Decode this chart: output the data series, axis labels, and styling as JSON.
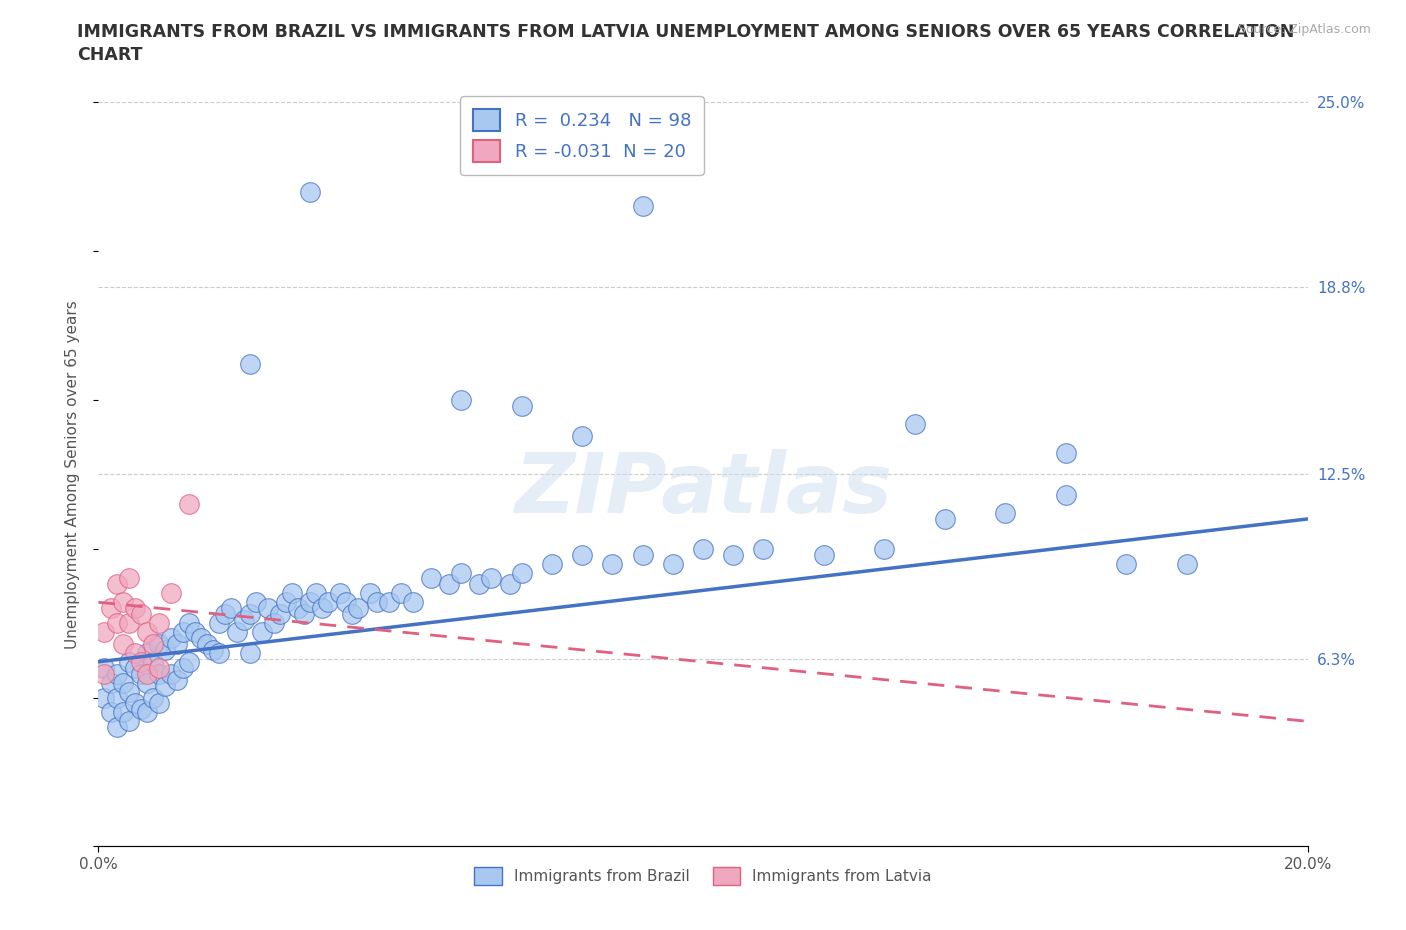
{
  "title": "IMMIGRANTS FROM BRAZIL VS IMMIGRANTS FROM LATVIA UNEMPLOYMENT AMONG SENIORS OVER 65 YEARS CORRELATION\nCHART",
  "source_text": "Source: ZipAtlas.com",
  "ylabel": "Unemployment Among Seniors over 65 years",
  "xlim": [
    0.0,
    0.2
  ],
  "ylim": [
    0.0,
    0.25
  ],
  "ytick_positions": [
    0.0,
    0.063,
    0.125,
    0.188,
    0.25
  ],
  "yticklabels_right": [
    "",
    "6.3%",
    "12.5%",
    "18.8%",
    "25.0%"
  ],
  "brazil_R": 0.234,
  "brazil_N": 98,
  "latvia_R": -0.031,
  "latvia_N": 20,
  "brazil_color": "#a8c8f0",
  "latvia_color": "#f0a8c0",
  "brazil_line_color": "#4472c4",
  "latvia_line_color": "#e06080",
  "watermark": "ZIPatlas",
  "legend_brazil_label": "Immigrants from Brazil",
  "legend_latvia_label": "Immigrants from Latvia",
  "brazil_line_y0": 0.062,
  "brazil_line_y1": 0.11,
  "latvia_line_y0": 0.082,
  "latvia_line_y1": 0.042,
  "brazil_x": [
    0.001,
    0.001,
    0.002,
    0.002,
    0.003,
    0.003,
    0.003,
    0.004,
    0.004,
    0.005,
    0.005,
    0.005,
    0.006,
    0.006,
    0.007,
    0.007,
    0.008,
    0.008,
    0.008,
    0.009,
    0.009,
    0.01,
    0.01,
    0.01,
    0.011,
    0.011,
    0.012,
    0.012,
    0.013,
    0.013,
    0.014,
    0.014,
    0.015,
    0.015,
    0.016,
    0.017,
    0.018,
    0.019,
    0.02,
    0.02,
    0.021,
    0.022,
    0.023,
    0.024,
    0.025,
    0.025,
    0.026,
    0.027,
    0.028,
    0.029,
    0.03,
    0.031,
    0.032,
    0.033,
    0.034,
    0.035,
    0.036,
    0.037,
    0.038,
    0.04,
    0.041,
    0.042,
    0.043,
    0.045,
    0.046,
    0.048,
    0.05,
    0.052,
    0.055,
    0.058,
    0.06,
    0.063,
    0.065,
    0.068,
    0.07,
    0.075,
    0.08,
    0.085,
    0.09,
    0.095,
    0.1,
    0.105,
    0.11,
    0.12,
    0.13,
    0.14,
    0.15,
    0.16,
    0.17,
    0.18,
    0.035,
    0.09,
    0.135,
    0.16,
    0.025,
    0.06,
    0.07,
    0.08
  ],
  "brazil_y": [
    0.06,
    0.05,
    0.055,
    0.045,
    0.058,
    0.05,
    0.04,
    0.055,
    0.045,
    0.062,
    0.052,
    0.042,
    0.06,
    0.048,
    0.058,
    0.046,
    0.065,
    0.055,
    0.045,
    0.062,
    0.05,
    0.068,
    0.058,
    0.048,
    0.066,
    0.054,
    0.07,
    0.058,
    0.068,
    0.056,
    0.072,
    0.06,
    0.075,
    0.062,
    0.072,
    0.07,
    0.068,
    0.066,
    0.075,
    0.065,
    0.078,
    0.08,
    0.072,
    0.076,
    0.078,
    0.065,
    0.082,
    0.072,
    0.08,
    0.075,
    0.078,
    0.082,
    0.085,
    0.08,
    0.078,
    0.082,
    0.085,
    0.08,
    0.082,
    0.085,
    0.082,
    0.078,
    0.08,
    0.085,
    0.082,
    0.082,
    0.085,
    0.082,
    0.09,
    0.088,
    0.092,
    0.088,
    0.09,
    0.088,
    0.092,
    0.095,
    0.098,
    0.095,
    0.098,
    0.095,
    0.1,
    0.098,
    0.1,
    0.098,
    0.1,
    0.11,
    0.112,
    0.118,
    0.095,
    0.095,
    0.22,
    0.215,
    0.142,
    0.132,
    0.162,
    0.15,
    0.148,
    0.138
  ],
  "latvia_x": [
    0.001,
    0.001,
    0.002,
    0.003,
    0.003,
    0.004,
    0.004,
    0.005,
    0.005,
    0.006,
    0.006,
    0.007,
    0.007,
    0.008,
    0.008,
    0.009,
    0.01,
    0.01,
    0.012,
    0.015
  ],
  "latvia_y": [
    0.072,
    0.058,
    0.08,
    0.088,
    0.075,
    0.082,
    0.068,
    0.09,
    0.075,
    0.08,
    0.065,
    0.078,
    0.062,
    0.072,
    0.058,
    0.068,
    0.075,
    0.06,
    0.085,
    0.115
  ]
}
